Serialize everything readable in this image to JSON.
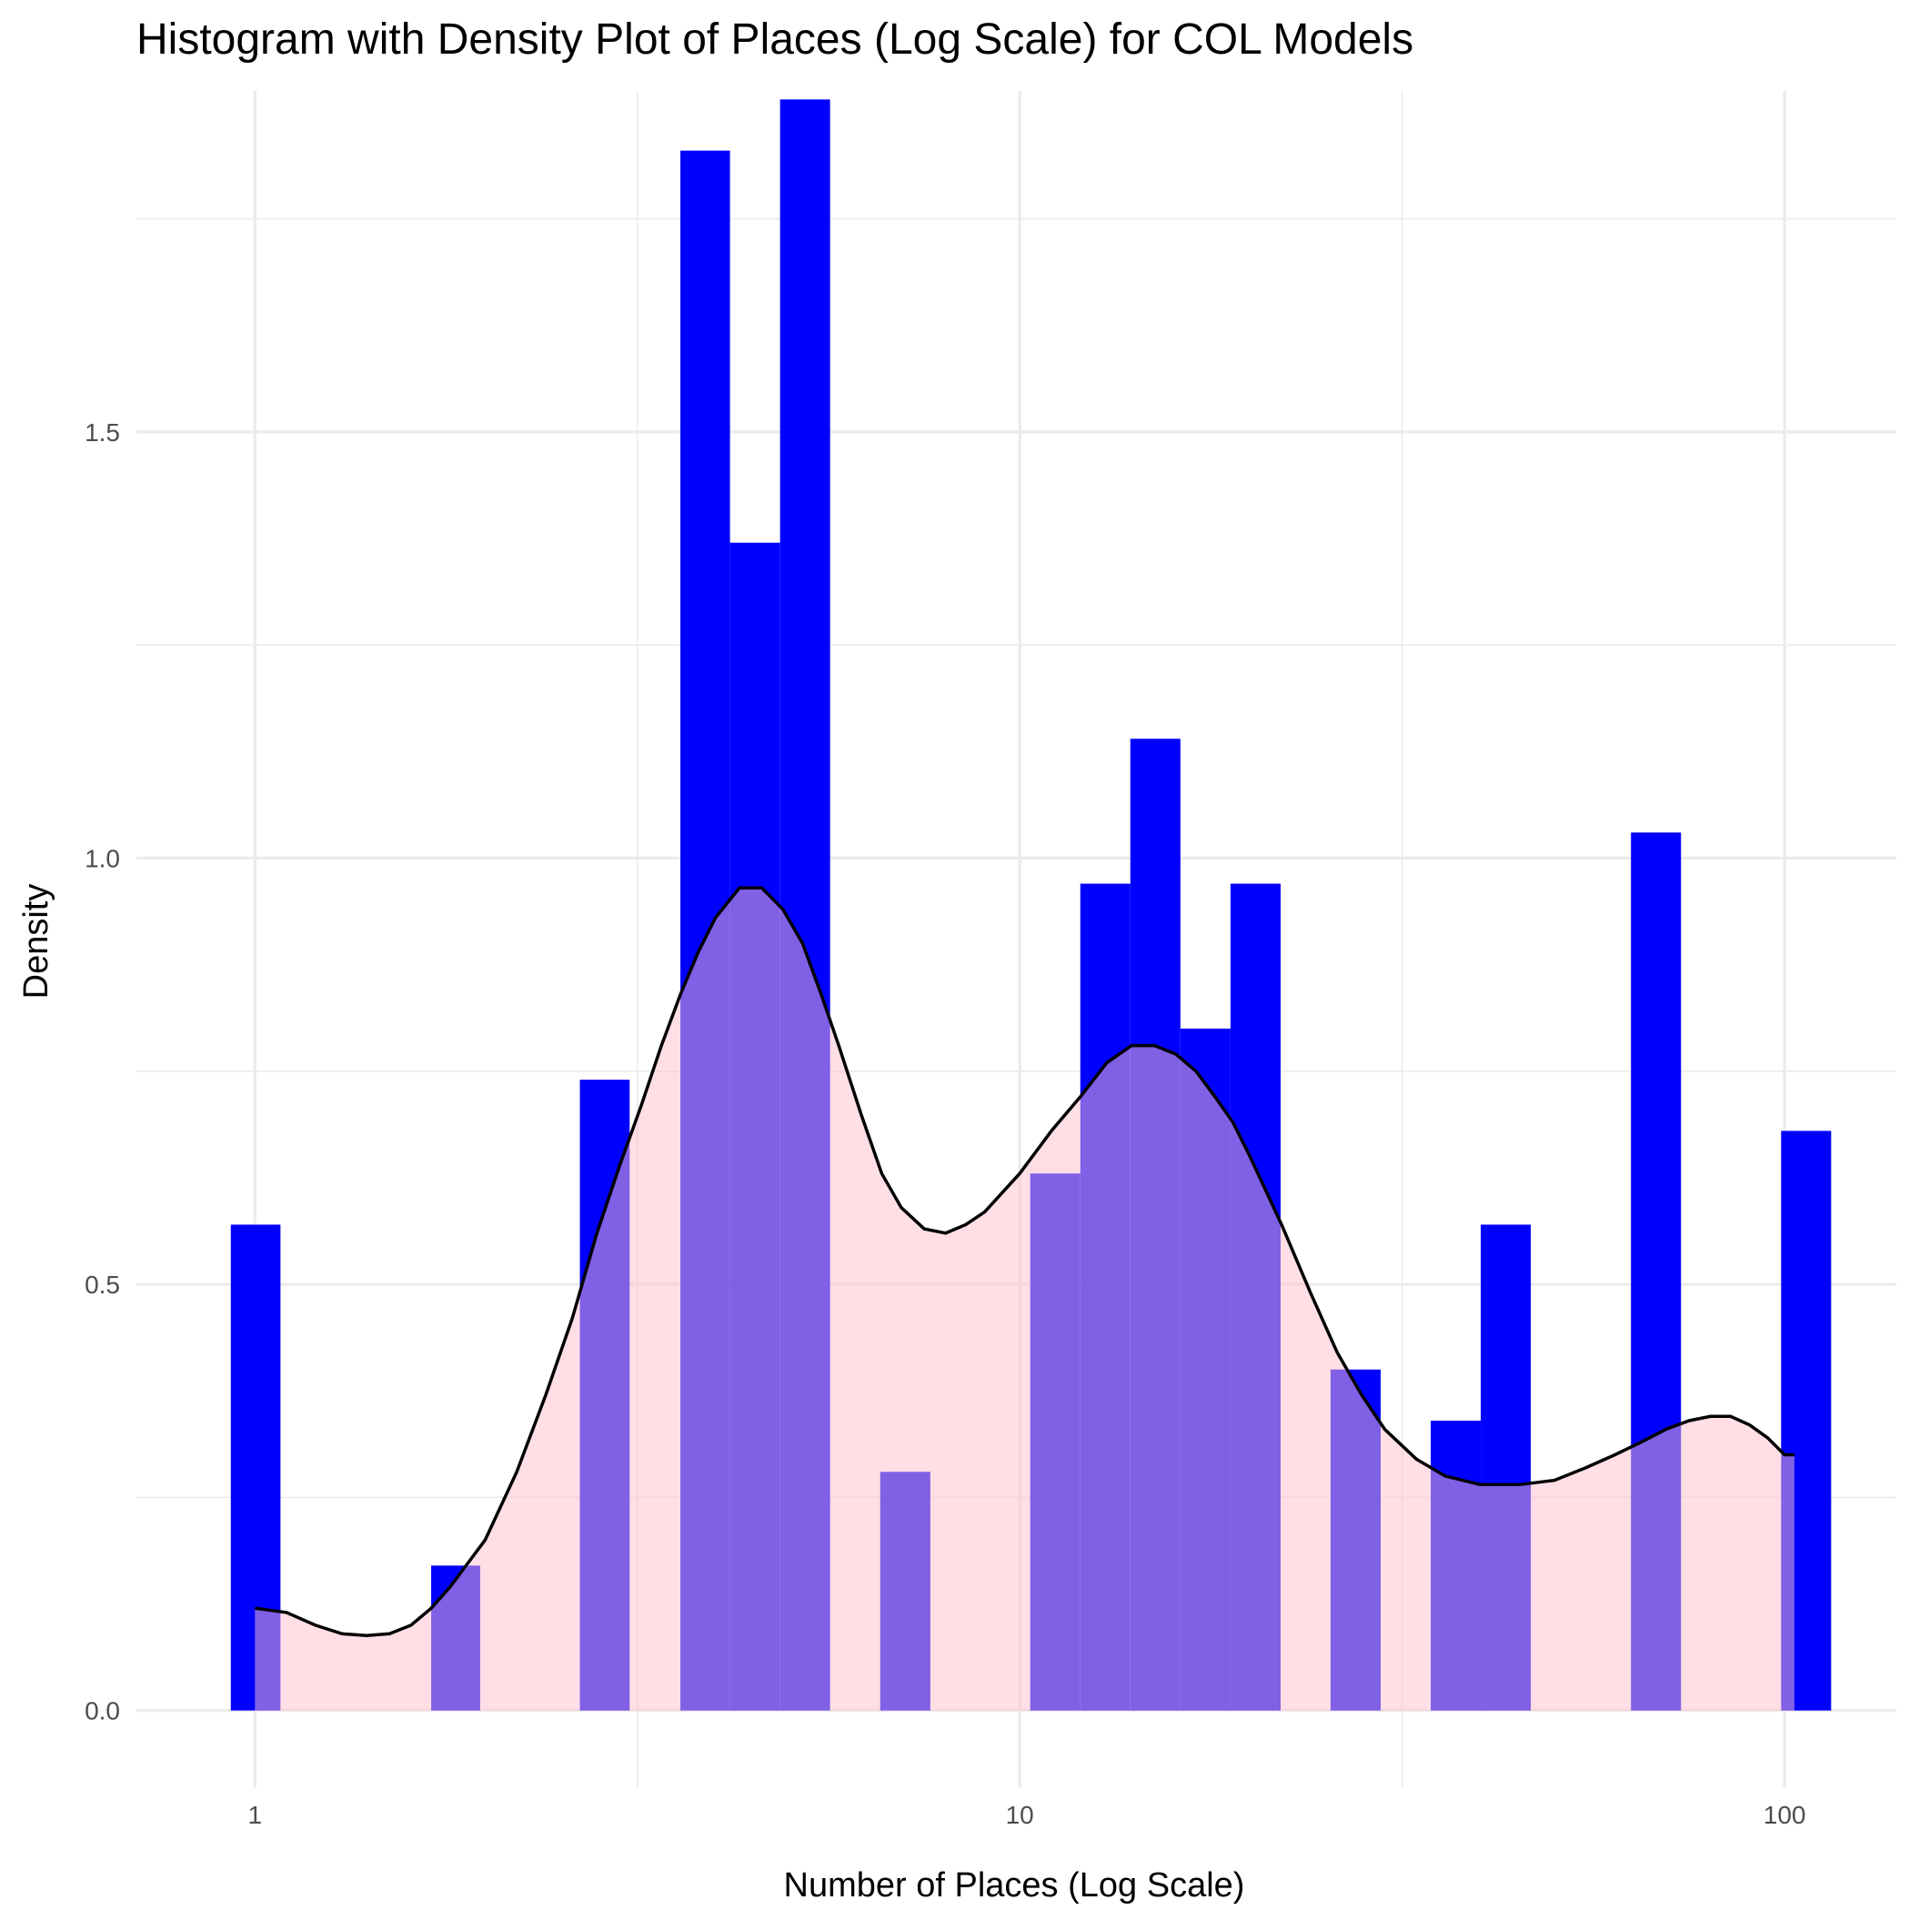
{
  "chart_data": {
    "type": "bar",
    "title": "Histogram with Density Plot of Places (Log Scale) for COL Models",
    "xlabel": "Number of Places (Log Scale)",
    "ylabel": "Density",
    "x_scale": "log10",
    "xlim": [
      0.7,
      140
    ],
    "ylim": [
      -0.09,
      1.9
    ],
    "grid": true,
    "legend": "none",
    "x_ticks": [
      1,
      10,
      100
    ],
    "x_tick_labels": [
      "1",
      "10",
      "100"
    ],
    "y_ticks": [
      0.0,
      0.5,
      1.0,
      1.5
    ],
    "y_tick_labels": [
      "0.0",
      "0.5",
      "1.0",
      "1.5"
    ],
    "histogram": {
      "color": "#0000ff",
      "bins": [
        {
          "x0": 0.93,
          "x1": 1.08,
          "density": 0.57
        },
        {
          "x0": 1.08,
          "x1": 1.25,
          "density": 0.0
        },
        {
          "x0": 1.25,
          "x1": 1.46,
          "density": 0.0
        },
        {
          "x0": 1.46,
          "x1": 1.7,
          "density": 0.0
        },
        {
          "x0": 1.7,
          "x1": 1.97,
          "density": 0.17
        },
        {
          "x0": 1.97,
          "x1": 2.29,
          "density": 0.0
        },
        {
          "x0": 2.29,
          "x1": 2.66,
          "density": 0.0
        },
        {
          "x0": 2.66,
          "x1": 3.09,
          "density": 0.74
        },
        {
          "x0": 3.09,
          "x1": 3.6,
          "density": 0.0
        },
        {
          "x0": 3.6,
          "x1": 4.18,
          "density": 1.83
        },
        {
          "x0": 4.18,
          "x1": 4.86,
          "density": 1.37
        },
        {
          "x0": 4.86,
          "x1": 5.65,
          "density": 1.89
        },
        {
          "x0": 5.65,
          "x1": 6.57,
          "density": 0.0
        },
        {
          "x0": 6.57,
          "x1": 7.64,
          "density": 0.28
        },
        {
          "x0": 7.64,
          "x1": 8.88,
          "density": 0.0
        },
        {
          "x0": 8.88,
          "x1": 10.32,
          "density": 0.0
        },
        {
          "x0": 10.32,
          "x1": 12.0,
          "density": 0.63
        },
        {
          "x0": 12.0,
          "x1": 13.95,
          "density": 0.97
        },
        {
          "x0": 13.95,
          "x1": 16.22,
          "density": 1.14
        },
        {
          "x0": 16.22,
          "x1": 18.86,
          "density": 0.8
        },
        {
          "x0": 18.86,
          "x1": 21.93,
          "density": 0.97
        },
        {
          "x0": 21.93,
          "x1": 25.49,
          "density": 0.0
        },
        {
          "x0": 25.49,
          "x1": 29.64,
          "density": 0.4
        },
        {
          "x0": 29.64,
          "x1": 34.46,
          "density": 0.0
        },
        {
          "x0": 34.46,
          "x1": 40.06,
          "density": 0.34
        },
        {
          "x0": 40.06,
          "x1": 46.58,
          "density": 0.57
        },
        {
          "x0": 46.58,
          "x1": 54.16,
          "density": 0.0
        },
        {
          "x0": 54.16,
          "x1": 62.97,
          "density": 0.0
        },
        {
          "x0": 62.97,
          "x1": 73.21,
          "density": 1.03
        },
        {
          "x0": 73.21,
          "x1": 85.11,
          "density": 0.0
        },
        {
          "x0": 85.11,
          "x1": 98.96,
          "density": 0.0
        },
        {
          "x0": 98.96,
          "x1": 115.05,
          "density": 0.68
        }
      ]
    },
    "density": {
      "line_color": "#000000",
      "fill_color": "#ffc0cb",
      "points": [
        [
          1.0,
          0.12
        ],
        [
          1.1,
          0.115
        ],
        [
          1.2,
          0.1
        ],
        [
          1.3,
          0.09
        ],
        [
          1.4,
          0.088
        ],
        [
          1.5,
          0.09
        ],
        [
          1.6,
          0.1
        ],
        [
          1.7,
          0.12
        ],
        [
          1.8,
          0.145
        ],
        [
          2.0,
          0.2
        ],
        [
          2.2,
          0.28
        ],
        [
          2.4,
          0.37
        ],
        [
          2.6,
          0.46
        ],
        [
          2.8,
          0.56
        ],
        [
          3.0,
          0.64
        ],
        [
          3.2,
          0.71
        ],
        [
          3.4,
          0.78
        ],
        [
          3.6,
          0.84
        ],
        [
          3.8,
          0.89
        ],
        [
          4.0,
          0.93
        ],
        [
          4.3,
          0.965
        ],
        [
          4.6,
          0.965
        ],
        [
          4.9,
          0.94
        ],
        [
          5.2,
          0.9
        ],
        [
          5.5,
          0.84
        ],
        [
          5.8,
          0.78
        ],
        [
          6.2,
          0.7
        ],
        [
          6.6,
          0.63
        ],
        [
          7.0,
          0.59
        ],
        [
          7.5,
          0.565
        ],
        [
          8.0,
          0.56
        ],
        [
          8.5,
          0.57
        ],
        [
          9.0,
          0.585
        ],
        [
          10.0,
          0.63
        ],
        [
          11.0,
          0.68
        ],
        [
          12.0,
          0.72
        ],
        [
          13.0,
          0.76
        ],
        [
          14.0,
          0.78
        ],
        [
          15.0,
          0.78
        ],
        [
          16.0,
          0.77
        ],
        [
          17.0,
          0.75
        ],
        [
          18.0,
          0.72
        ],
        [
          19.0,
          0.69
        ],
        [
          20.0,
          0.65
        ],
        [
          22.0,
          0.57
        ],
        [
          24.0,
          0.49
        ],
        [
          26.0,
          0.42
        ],
        [
          28.0,
          0.37
        ],
        [
          30.0,
          0.33
        ],
        [
          33.0,
          0.295
        ],
        [
          36.0,
          0.275
        ],
        [
          40.0,
          0.265
        ],
        [
          45.0,
          0.265
        ],
        [
          50.0,
          0.27
        ],
        [
          55.0,
          0.285
        ],
        [
          60.0,
          0.3
        ],
        [
          65.0,
          0.315
        ],
        [
          70.0,
          0.33
        ],
        [
          75.0,
          0.34
        ],
        [
          80.0,
          0.345
        ],
        [
          85.0,
          0.345
        ],
        [
          90.0,
          0.335
        ],
        [
          95.0,
          0.32
        ],
        [
          100.0,
          0.3
        ],
        [
          103.0,
          0.3
        ]
      ]
    }
  }
}
